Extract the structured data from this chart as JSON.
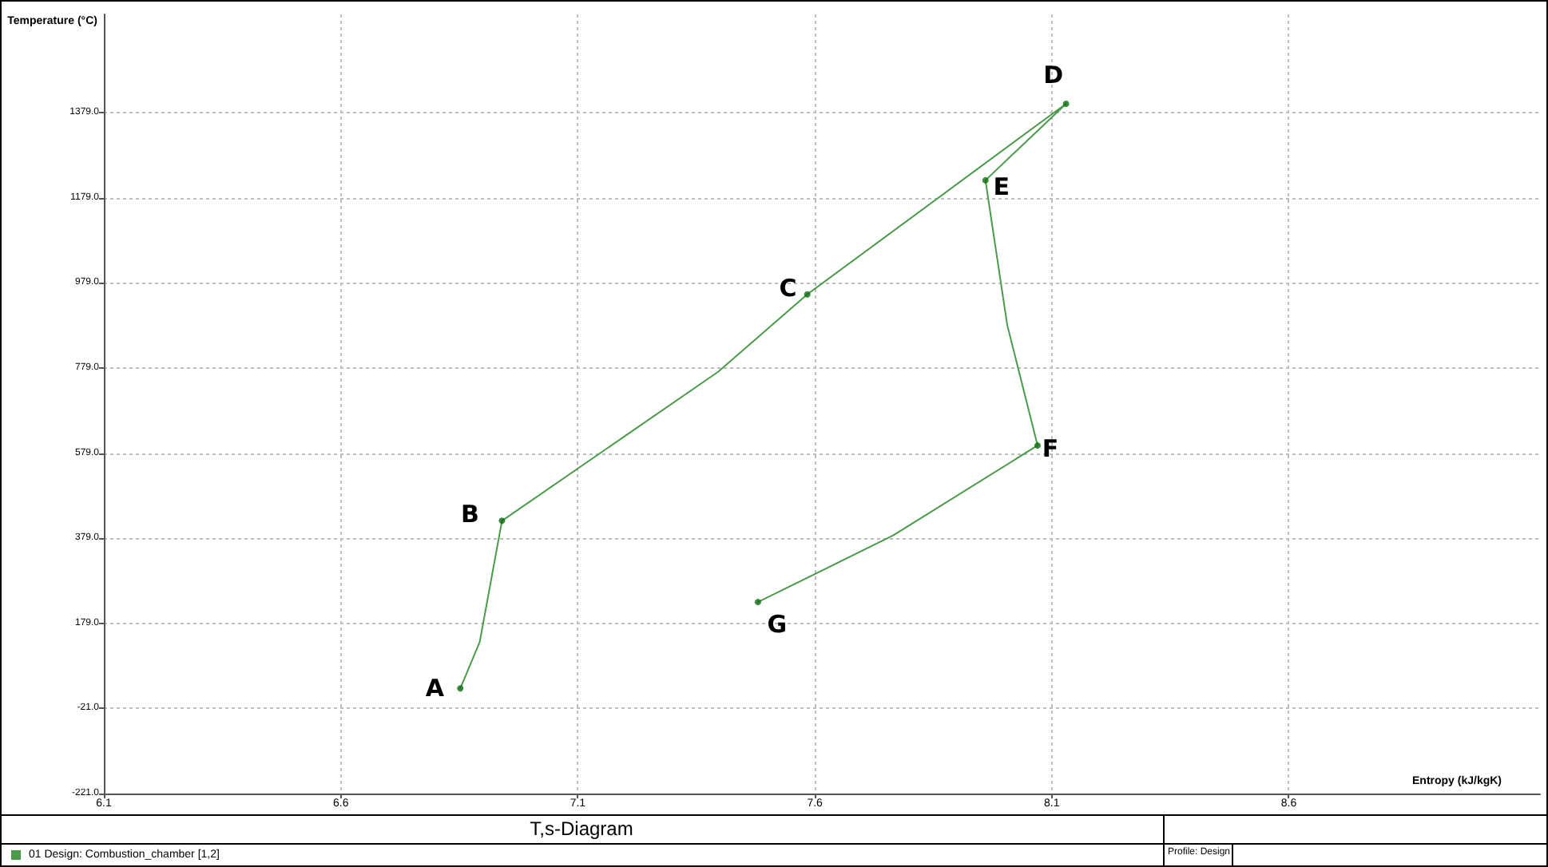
{
  "chart_data": {
    "type": "line",
    "title": "T,s-Diagram",
    "xlabel": "Entropy (kJ/kgK)",
    "ylabel": "Temperature (°C)",
    "series": [
      {
        "name": "01 Design: Combustion_chamber [1,2]",
        "color": "#4a9a4a",
        "marker": "none",
        "x": [
          6.852,
          6.893,
          6.94,
          7.396,
          7.584,
          8.13,
          7.96,
          8.006,
          8.07,
          7.766,
          7.48
        ],
        "values": [
          26,
          135,
          420,
          770,
          952,
          1400,
          1220,
          880,
          597,
          386,
          229
        ]
      },
      {
        "type": "scatter",
        "color": "#0b6b0b",
        "marker": "circle",
        "x": [
          6.852,
          6.94,
          7.584,
          8.13,
          7.96,
          8.07,
          7.48
        ],
        "values": [
          26,
          420,
          952,
          1400,
          1220,
          597,
          229
        ]
      }
    ],
    "annotations": [
      {
        "text": "A",
        "x": 6.852,
        "y": 26
      },
      {
        "text": "B",
        "x": 6.94,
        "y": 420
      },
      {
        "text": "C",
        "x": 7.584,
        "y": 952
      },
      {
        "text": "D",
        "x": 8.13,
        "y": 1400
      },
      {
        "text": "E",
        "x": 7.96,
        "y": 1220
      },
      {
        "text": "F",
        "x": 8.07,
        "y": 597
      },
      {
        "text": "G",
        "x": 7.48,
        "y": 229
      },
      "Profile: Design"
    ],
    "xlim": [
      6.1,
      9.13
    ],
    "ylim": [
      -221,
      1610
    ],
    "xticks": [
      6.1,
      6.6,
      7.1,
      7.6,
      8.1,
      8.6
    ],
    "yticks": [
      {
        "value": -221,
        "label": "-221.0"
      },
      {
        "value": -21,
        "label": "-21.0"
      },
      {
        "value": 179,
        "label": "179.0"
      },
      {
        "value": 379,
        "label": "379.0"
      },
      {
        "value": 579,
        "label": "579.0"
      },
      {
        "value": 779,
        "label": "779.0"
      },
      {
        "value": 979,
        "label": "979.0"
      },
      {
        "value": 1179,
        "label": "1179.0"
      },
      {
        "value": 1379,
        "label": "1379.0"
      }
    ],
    "grid": true,
    "legend": "bottom left",
    "line_style": "solid"
  }
}
